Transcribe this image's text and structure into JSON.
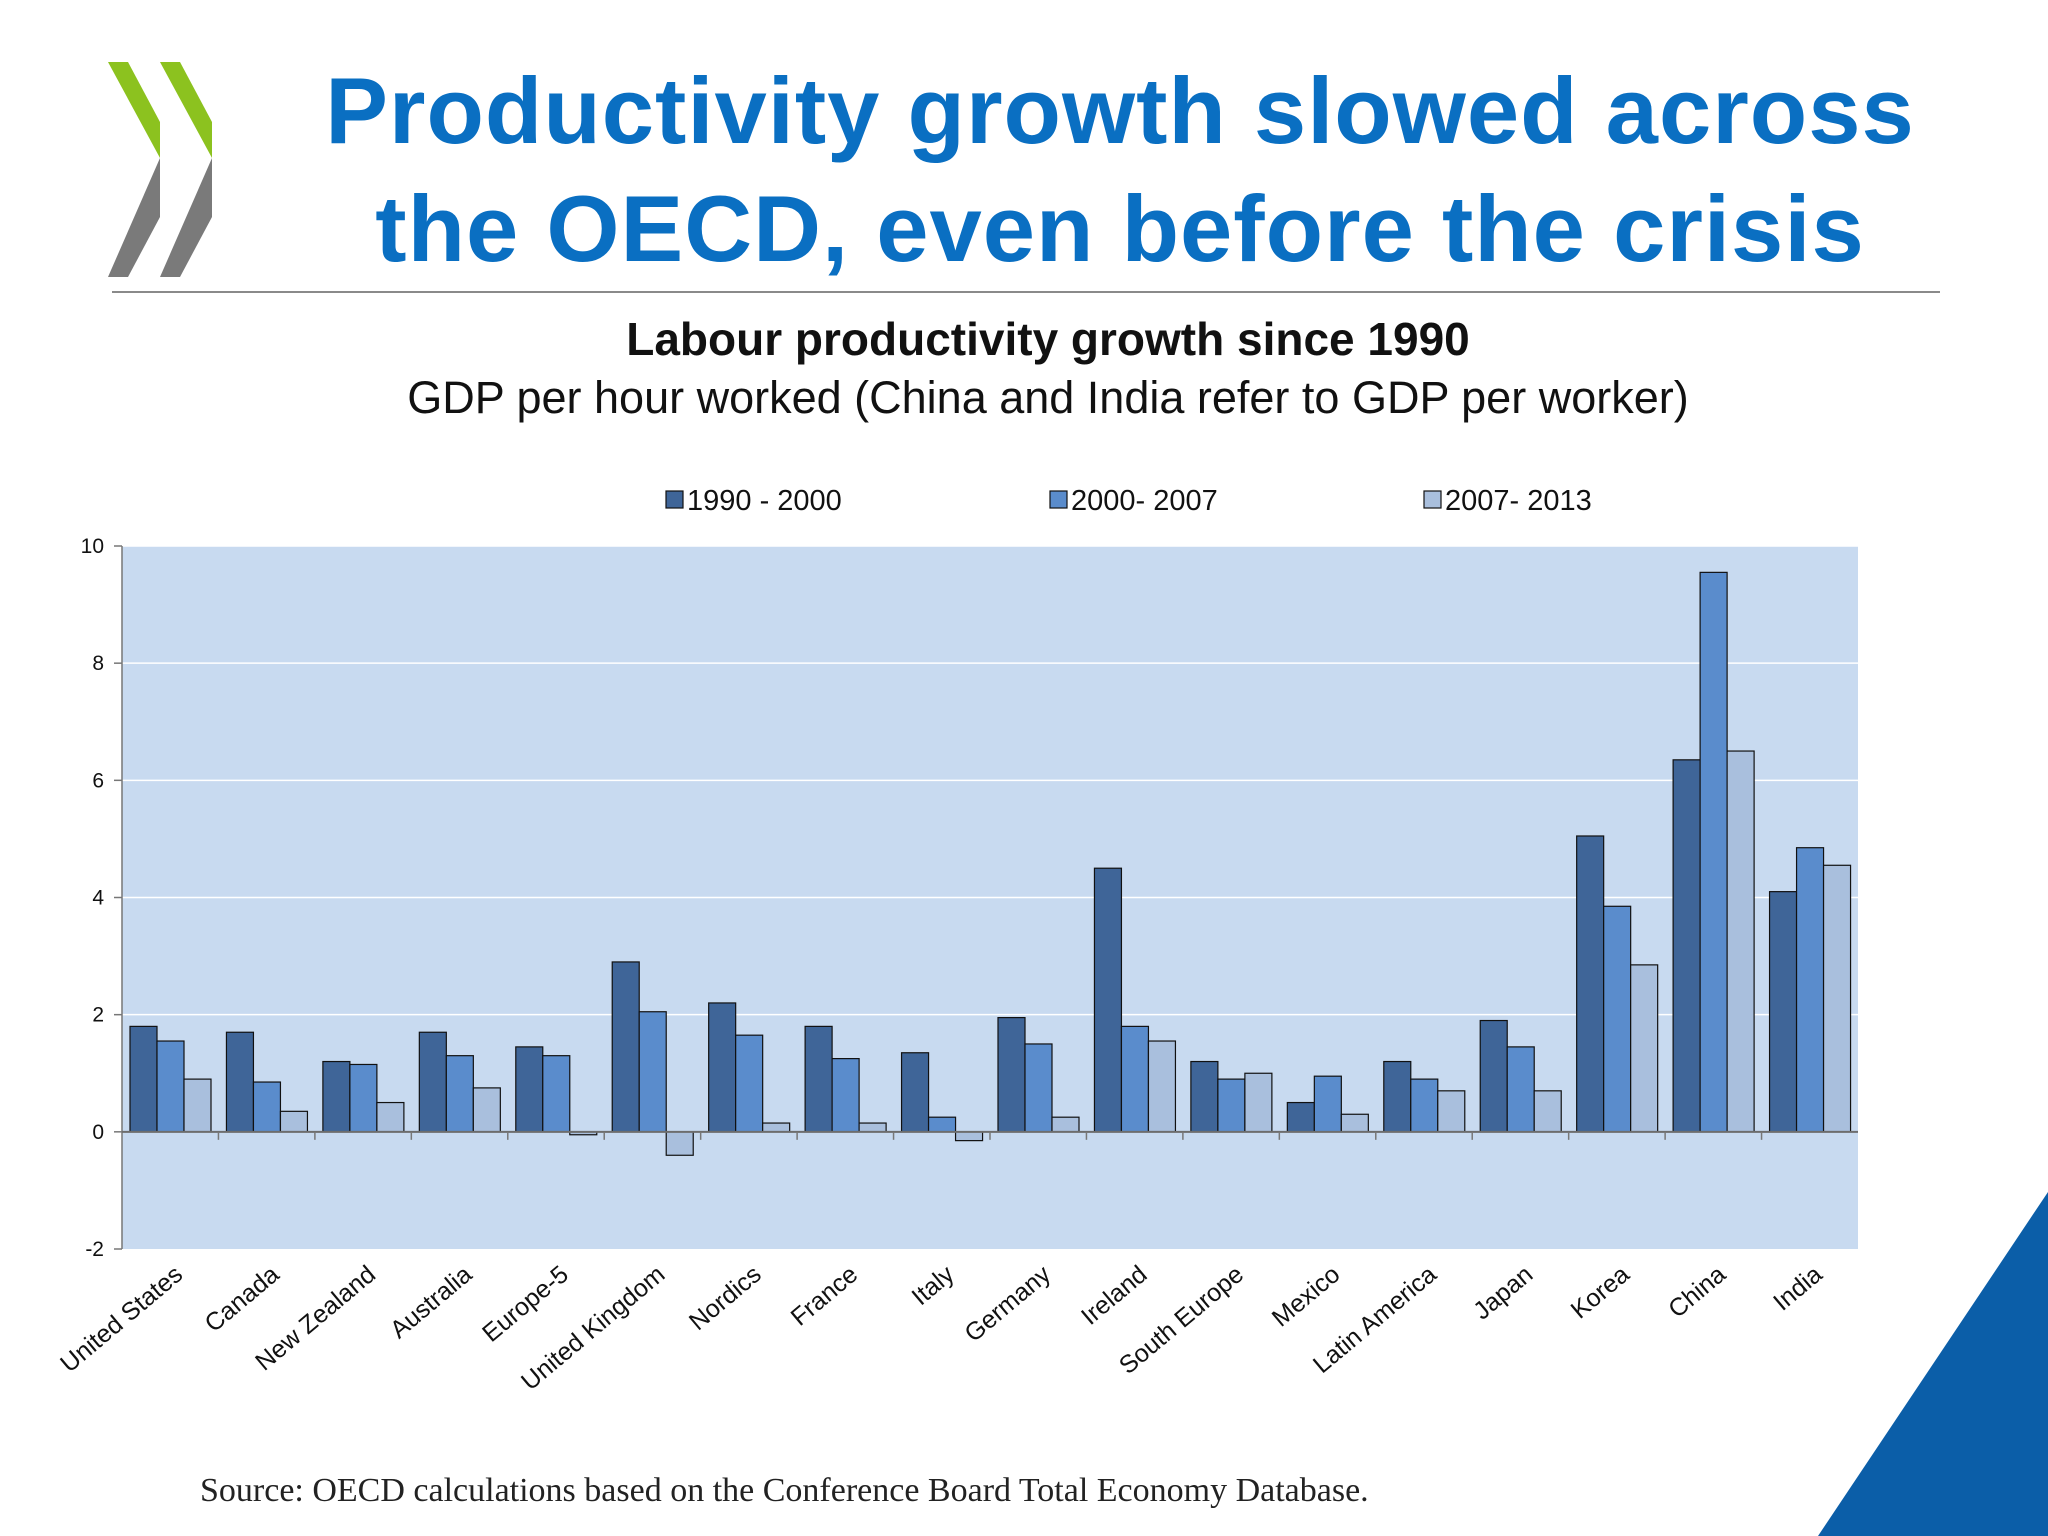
{
  "slide": {
    "title_line1": "Productivity growth slowed across",
    "title_line2": "the OECD, even before the crisis",
    "source": "Source: OECD calculations based on the Conference Board Total Economy Database.",
    "colors": {
      "title": "#0a6fc2",
      "logo_green": "#8cc21f",
      "logo_grey": "#7a7a7a",
      "corner": "#0b5ea8"
    }
  },
  "chart_data": {
    "type": "bar",
    "title": "Labour productivity growth since 1990",
    "subtitle": "GDP per hour worked (China and India refer to GDP per worker)",
    "categories": [
      "United States",
      "Canada",
      "New Zealand",
      "Australia",
      "Europe-5",
      "United Kingdom",
      "Nordics",
      "France",
      "Italy",
      "Germany",
      "Ireland",
      "South Europe",
      "Mexico",
      "Latin America",
      "Japan",
      "Korea",
      "China",
      "India"
    ],
    "series": [
      {
        "name": "1990 - 2000",
        "color": "#3f6598",
        "values": [
          1.8,
          1.7,
          1.2,
          1.7,
          1.45,
          2.9,
          2.2,
          1.8,
          1.35,
          1.95,
          4.5,
          1.2,
          0.5,
          1.2,
          1.9,
          5.05,
          6.35,
          4.1
        ]
      },
      {
        "name": "2000- 2007",
        "color": "#5a8ccc",
        "values": [
          1.55,
          0.85,
          1.15,
          1.3,
          1.3,
          2.05,
          1.65,
          1.25,
          0.25,
          1.5,
          1.8,
          0.9,
          0.95,
          0.9,
          1.45,
          3.85,
          9.55,
          4.85
        ]
      },
      {
        "name": "2007- 2013",
        "color": "#a9bfdd",
        "values": [
          0.9,
          0.35,
          0.5,
          0.75,
          -0.05,
          -0.4,
          0.15,
          0.15,
          -0.15,
          0.25,
          1.55,
          1.0,
          0.3,
          0.7,
          0.7,
          2.85,
          6.5,
          4.55
        ]
      }
    ],
    "ylim": [
      -2,
      10
    ],
    "yticks": [
      -2,
      0,
      2,
      4,
      6,
      8,
      10
    ],
    "xlabel": "",
    "ylabel": "",
    "grid": true,
    "legend_position": "top",
    "plot_background": "#c8daf0"
  }
}
